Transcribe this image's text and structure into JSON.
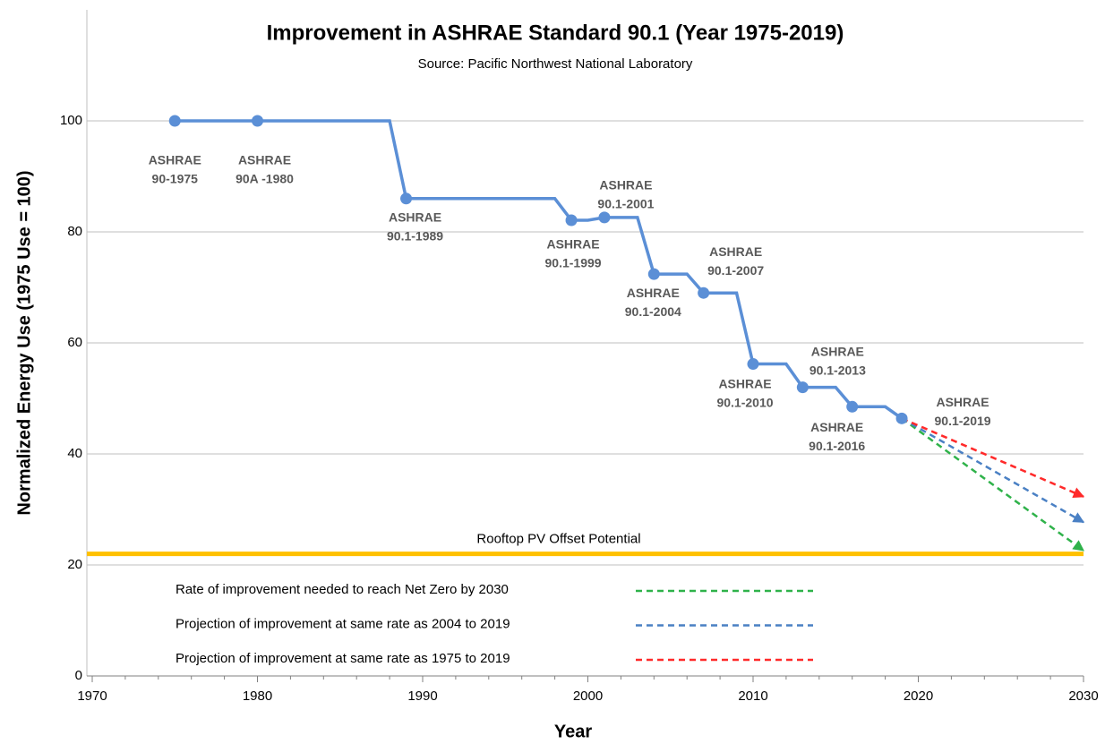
{
  "chart_data": {
    "type": "line",
    "title": "Improvement in ASHRAE Standard 90.1 (Year 1975-2019)",
    "subtitle": "Source: Pacific Northwest National Laboratory",
    "x_label": "Year",
    "y_label": "Normalized Energy Use  (1975 Use = 100)",
    "xlim": [
      1970,
      2030
    ],
    "xticks": [
      1970,
      1980,
      1990,
      2000,
      2010,
      2020,
      2030
    ],
    "xminorticks": [
      1972,
      1974,
      1976,
      1978,
      1982,
      1984,
      1986,
      1988,
      1992,
      1994,
      1996,
      1998,
      2002,
      2004,
      2006,
      2008,
      2012,
      2014,
      2016,
      2018,
      2022,
      2024,
      2026,
      2028
    ],
    "ylim": [
      0,
      120
    ],
    "yticks": [
      0,
      20,
      40,
      60,
      80,
      100
    ],
    "grid": true,
    "series": [
      {
        "color": "#5b8fd6",
        "style": "solid",
        "x": [
          1975,
          1988,
          1989,
          1998,
          1999,
          2000,
          2001,
          2003,
          2004,
          2006,
          2007,
          2009,
          2010,
          2012,
          2013,
          2015,
          2016,
          2018,
          2019
        ],
        "values": [
          100,
          100,
          86,
          86,
          82.1,
          82.1,
          82.6,
          82.6,
          72.4,
          72.4,
          69,
          69,
          56.2,
          56.2,
          52,
          52,
          48.5,
          48.5,
          46.4
        ]
      },
      {
        "name": "Rate of improvement needed to reach Net Zero by 2030",
        "color": "#2fb24a",
        "style": "dashed",
        "x": [
          2019,
          2030
        ],
        "values": [
          46.4,
          22.6
        ]
      },
      {
        "name": "Projection of improvement at same rate as 2004 to 2019",
        "color": "#4a80c4",
        "style": "dashed",
        "x": [
          2019,
          2030
        ],
        "values": [
          46.4,
          27.7
        ]
      },
      {
        "name": "Projection of improvement at same rate as 1975 to 2019",
        "color": "#ff2a2a",
        "style": "dashed",
        "x": [
          2019,
          2030
        ],
        "values": [
          46.4,
          32.3
        ]
      }
    ],
    "markers": {
      "color": "#5b8fd6",
      "x": [
        1975,
        1980,
        1989,
        1999,
        2001,
        2004,
        2007,
        2010,
        2013,
        2016,
        2019
      ],
      "values": [
        100,
        100,
        86,
        82.1,
        82.6,
        72.4,
        69,
        56.2,
        52,
        48.5,
        46.4
      ],
      "labels": [
        [
          "ASHRAE",
          "90-1975"
        ],
        [
          "ASHRAE",
          "90A -1980"
        ],
        [
          "ASHRAE",
          "90.1-1989"
        ],
        [
          "ASHRAE",
          "90.1-1999"
        ],
        [
          "ASHRAE",
          "90.1-2001"
        ],
        [
          "ASHRAE",
          "90.1-2004"
        ],
        [
          "ASHRAE",
          "90.1-2007"
        ],
        [
          "ASHRAE",
          "90.1-2010"
        ],
        [
          "ASHRAE",
          "90.1-2013"
        ],
        [
          "ASHRAE",
          "90.1-2016"
        ],
        [
          "ASHRAE",
          "90.1-2019"
        ]
      ]
    },
    "reference_line": {
      "value": 22,
      "label": "Rooftop PV Offset Potential",
      "color": "#ffc000"
    }
  }
}
